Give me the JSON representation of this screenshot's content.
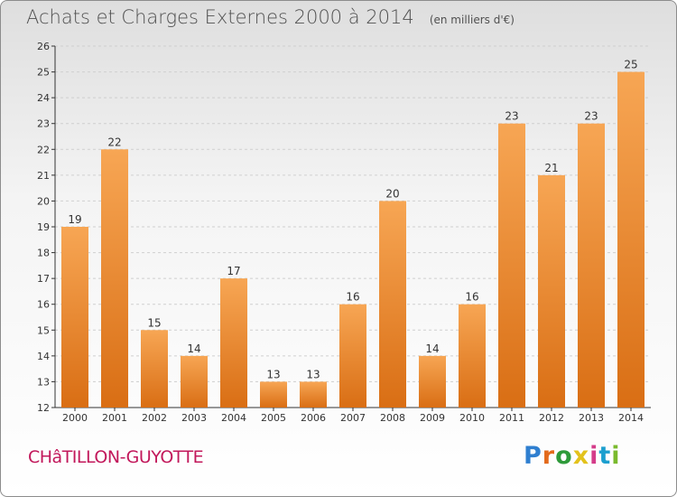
{
  "title": "Achats et Charges Externes 2000 à 2014",
  "subtitle": "(en milliers d'€)",
  "commune": "CHâTILLON-GUYOTTE",
  "logo": {
    "letters": [
      "P",
      "r",
      "o",
      "x",
      "i",
      "t",
      "i"
    ]
  },
  "colors": {
    "bar_top": "#f7a654",
    "bar_bottom": "#d96e14",
    "commune": "#c2185b",
    "axis": "#333333",
    "grid": "#cfcfcf"
  },
  "chart_data": {
    "type": "bar",
    "categories": [
      "2000",
      "2001",
      "2002",
      "2003",
      "2004",
      "2005",
      "2006",
      "2007",
      "2008",
      "2009",
      "2010",
      "2011",
      "2012",
      "2013",
      "2014"
    ],
    "values": [
      19,
      22,
      15,
      14,
      17,
      13,
      13,
      16,
      20,
      14,
      16,
      23,
      21,
      23,
      25
    ],
    "data_labels": [
      "19",
      "22",
      "15",
      "14",
      "17",
      "13",
      "13",
      "16",
      "20",
      "14",
      "16",
      "23",
      "21",
      "23",
      "25"
    ],
    "ylim": [
      12,
      26
    ],
    "yticks": [
      "12",
      "13",
      "14",
      "15",
      "16",
      "17",
      "18",
      "19",
      "20",
      "21",
      "22",
      "23",
      "24",
      "25",
      "26"
    ],
    "grid": true,
    "xlabel": "",
    "ylabel": ""
  }
}
